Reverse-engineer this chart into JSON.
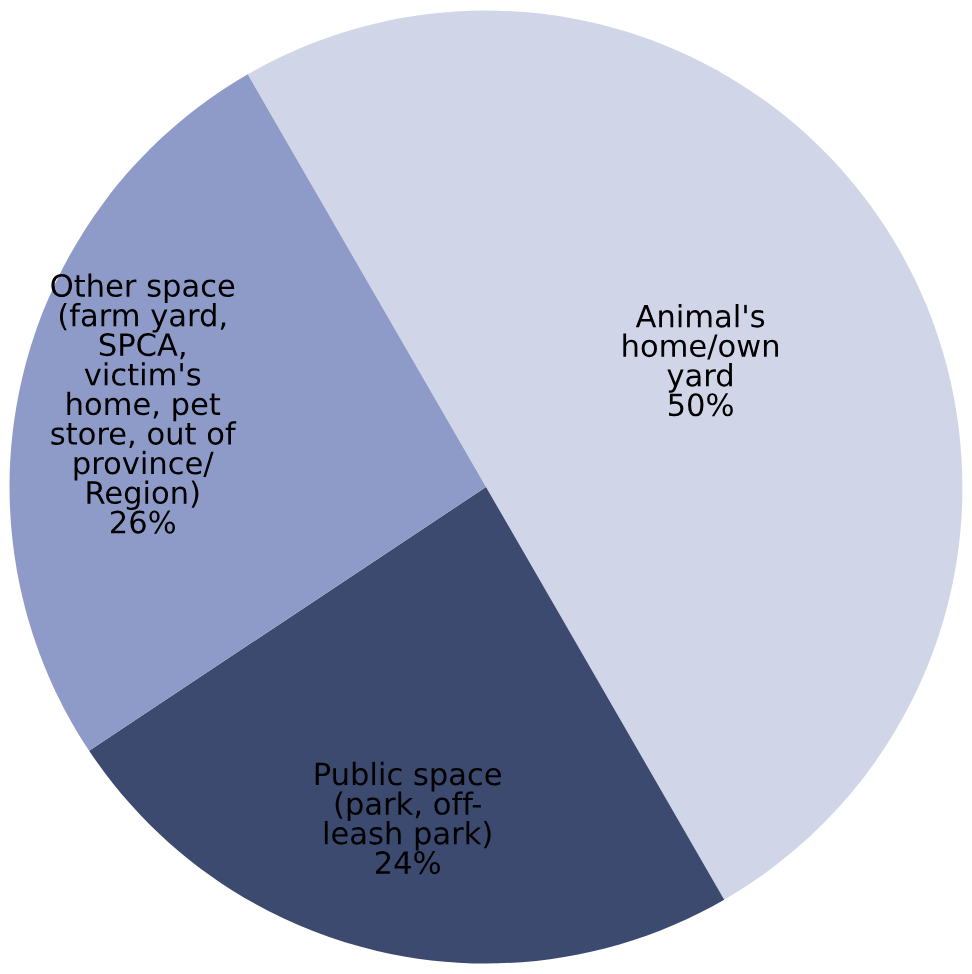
{
  "chart_data": {
    "type": "pie",
    "categories": [
      "Animal's\nhome/own\nyard",
      "Public space\n(park, off-\nleash park)",
      "Other space\n(farm yard,\nSPCA,\nvictim's\nhome, pet\nstore, out of\nprovince/\nRegion)"
    ],
    "values": [
      50,
      24,
      26
    ],
    "colors": [
      "#d0d5e8",
      "#3b4a6e",
      "#8e9bc8"
    ],
    "value_labels": [
      "50%",
      "24%",
      "26%"
    ]
  }
}
